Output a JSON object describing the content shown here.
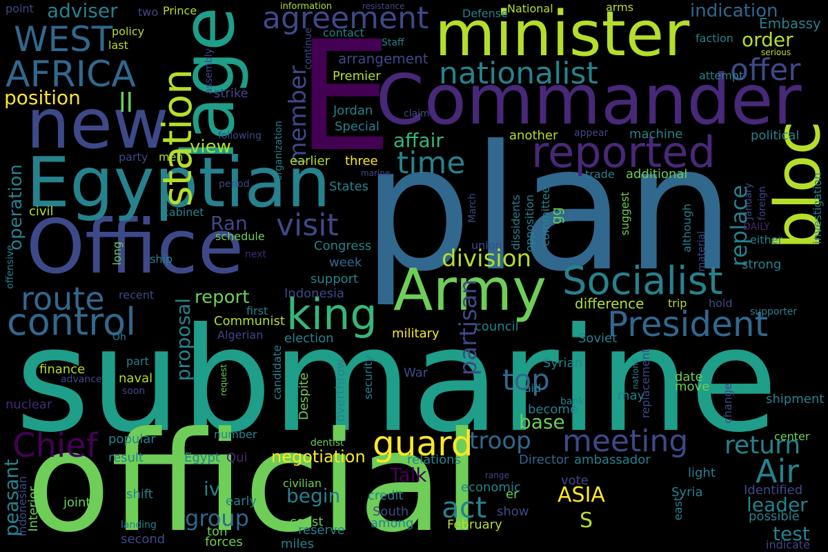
{
  "colors": {
    "background": "#000000",
    "palette": [
      "#440154",
      "#482878",
      "#3e4989",
      "#31688e",
      "#26828e",
      "#1f9e89",
      "#35b779",
      "#6ece58",
      "#b5de2b",
      "#fde725"
    ]
  },
  "words": [
    {
      "text": "submarine",
      "color": "#1f9e89"
    },
    {
      "text": "official",
      "color": "#6ece58"
    },
    {
      "text": "plan",
      "color": "#31688e"
    },
    {
      "text": "Commander",
      "color": "#482878"
    },
    {
      "text": "E",
      "color": "#440154"
    },
    {
      "text": "minister",
      "color": "#b5de2b"
    },
    {
      "text": "Office",
      "color": "#3e4989"
    },
    {
      "text": "Egyptian",
      "color": "#26828e"
    },
    {
      "text": "new",
      "color": "#3e4989"
    },
    {
      "text": "lage",
      "color": "#1f9e89"
    },
    {
      "text": "Army",
      "color": "#6ece58"
    },
    {
      "text": "bloc",
      "color": "#b5de2b"
    },
    {
      "text": "reported",
      "color": "#482878"
    },
    {
      "text": "Socialist",
      "color": "#26828e"
    },
    {
      "text": "President",
      "color": "#31688e"
    },
    {
      "text": "control",
      "color": "#31688e"
    },
    {
      "text": "king",
      "color": "#35b779"
    },
    {
      "text": "station",
      "color": "#b5de2b"
    },
    {
      "text": "AFRICA",
      "color": "#31688e"
    },
    {
      "text": "WEST",
      "color": "#31688e"
    },
    {
      "text": "nationalist",
      "color": "#26828e"
    },
    {
      "text": "route",
      "color": "#31688e"
    },
    {
      "text": "agreement",
      "color": "#3e4989"
    },
    {
      "text": "visit",
      "color": "#3e4989"
    },
    {
      "text": "guard",
      "color": "#fde725"
    },
    {
      "text": "meeting",
      "color": "#3e4989"
    },
    {
      "text": "Chief",
      "color": "#440154"
    },
    {
      "text": "offer",
      "color": "#3e4989"
    },
    {
      "text": "time",
      "color": "#26828e"
    },
    {
      "text": "division",
      "color": "#b5de2b"
    },
    {
      "text": "act",
      "color": "#26828e"
    },
    {
      "text": "top",
      "color": "#31688e"
    },
    {
      "text": "Air",
      "color": "#26828e"
    },
    {
      "text": "return",
      "color": "#26828e"
    },
    {
      "text": "troop",
      "color": "#31688e"
    },
    {
      "text": "member",
      "color": "#3e4989"
    },
    {
      "text": "position",
      "color": "#fde725"
    },
    {
      "text": "indication",
      "color": "#31688e"
    },
    {
      "text": "order",
      "color": "#b5de2b"
    },
    {
      "text": "replace",
      "color": "#26828e"
    },
    {
      "text": "partisan",
      "color": "#3e4989"
    },
    {
      "text": "proposal",
      "color": "#26828e"
    },
    {
      "text": "group",
      "color": "#31688e"
    },
    {
      "text": "base",
      "color": "#6ece58"
    },
    {
      "text": "leader",
      "color": "#26828e"
    },
    {
      "text": "test",
      "color": "#26828e"
    },
    {
      "text": "adviser",
      "color": "#26828e"
    },
    {
      "text": "operation",
      "color": "#26828e"
    },
    {
      "text": "peasant",
      "color": "#26828e"
    },
    {
      "text": "report",
      "color": "#6ece58"
    },
    {
      "text": "ASIA",
      "color": "#fde725"
    },
    {
      "text": "begin",
      "color": "#26828e"
    },
    {
      "text": "iv",
      "color": "#26828e"
    },
    {
      "text": "Talk",
      "color": "#440154"
    },
    {
      "text": "view",
      "color": "#b5de2b"
    },
    {
      "text": "affair",
      "color": "#35b779"
    },
    {
      "text": "negotiation",
      "color": "#fde725"
    },
    {
      "text": "ll",
      "color": "#6ece58"
    },
    {
      "text": "Ran",
      "color": "#3e4989"
    },
    {
      "text": "Embassy",
      "color": "#26828e"
    },
    {
      "text": "S",
      "color": "#b5de2b"
    },
    {
      "text": "arrangement",
      "color": "#3e4989"
    },
    {
      "text": "difference",
      "color": "#b5de2b"
    },
    {
      "text": "week",
      "color": "#31688e"
    },
    {
      "text": "finance",
      "color": "#b5de2b"
    },
    {
      "text": "Premier",
      "color": "#b5de2b"
    },
    {
      "text": "Communist",
      "color": "#b5de2b"
    },
    {
      "text": "military",
      "color": "#fde725"
    },
    {
      "text": "council",
      "color": "#26828e"
    },
    {
      "text": "Indonesia",
      "color": "#3e4989"
    },
    {
      "text": "support",
      "color": "#26828e"
    },
    {
      "text": "Congress",
      "color": "#26828e"
    },
    {
      "text": "election",
      "color": "#26828e"
    },
    {
      "text": "naval",
      "color": "#b5de2b"
    },
    {
      "text": "popular",
      "color": "#26828e"
    },
    {
      "text": "result",
      "color": "#26828e"
    },
    {
      "text": "Egypt",
      "color": "#26828e"
    },
    {
      "text": "Qui",
      "color": "#482878"
    },
    {
      "text": "Director",
      "color": "#31688e"
    },
    {
      "text": "relations",
      "color": "#26828e"
    },
    {
      "text": "ambassador",
      "color": "#26828e"
    },
    {
      "text": "light",
      "color": "#26828e"
    },
    {
      "text": "Syria",
      "color": "#26828e"
    },
    {
      "text": "economic",
      "color": "#26828e"
    },
    {
      "text": "credit",
      "color": "#26828e"
    },
    {
      "text": "er",
      "color": "#6ece58"
    },
    {
      "text": "show",
      "color": "#3e4989"
    },
    {
      "text": "vote",
      "color": "#3e4989"
    },
    {
      "text": "Identified",
      "color": "#3e4989"
    },
    {
      "text": "possible",
      "color": "#26828e"
    },
    {
      "text": "joint",
      "color": "#6ece58"
    },
    {
      "text": "shift",
      "color": "#26828e"
    },
    {
      "text": "early",
      "color": "#26828e"
    },
    {
      "text": "coast",
      "color": "#6ece58"
    },
    {
      "text": "among",
      "color": "#26828e"
    },
    {
      "text": "South",
      "color": "#3e4989"
    },
    {
      "text": "February",
      "color": "#b5de2b"
    },
    {
      "text": "reserve",
      "color": "#26828e"
    },
    {
      "text": "ton",
      "color": "#6ece58"
    },
    {
      "text": "forces",
      "color": "#6ece58"
    },
    {
      "text": "miles",
      "color": "#26828e"
    },
    {
      "text": "second",
      "color": "#3e4989"
    },
    {
      "text": "landing",
      "color": "#26828e"
    },
    {
      "text": "Interior",
      "color": "#6ece58"
    },
    {
      "text": "Indonesian",
      "color": "#3e4989"
    },
    {
      "text": "indicate",
      "color": "#3e4989"
    },
    {
      "text": "number",
      "color": "#26828e"
    },
    {
      "text": "dentist",
      "color": "#6ece58"
    },
    {
      "text": "center",
      "color": "#6ece58"
    },
    {
      "text": "shipment",
      "color": "#26828e"
    },
    {
      "text": "may",
      "color": "#26828e"
    },
    {
      "text": "move",
      "color": "#6ece58"
    },
    {
      "text": "date",
      "color": "#6ece58"
    },
    {
      "text": "bank",
      "color": "#26828e"
    },
    {
      "text": "become",
      "color": "#26828e"
    },
    {
      "text": "aid",
      "color": "#26828e"
    },
    {
      "text": "Syrian",
      "color": "#26828e"
    },
    {
      "text": "Soviet",
      "color": "#26828e"
    },
    {
      "text": "War",
      "color": "#3e4989"
    },
    {
      "text": "part",
      "color": "#26828e"
    },
    {
      "text": "advance",
      "color": "#3e4989"
    },
    {
      "text": "soon",
      "color": "#3e4989"
    },
    {
      "text": "nuclear",
      "color": "#482878"
    },
    {
      "text": "Oh",
      "color": "#26828e"
    },
    {
      "text": "Algerian",
      "color": "#3e4989"
    },
    {
      "text": "first",
      "color": "#26828e"
    },
    {
      "text": "recent",
      "color": "#3e4989"
    },
    {
      "text": "ship",
      "color": "#26828e"
    },
    {
      "text": "long",
      "color": "#6ece58"
    },
    {
      "text": "schedule",
      "color": "#6ece58"
    },
    {
      "text": "cabinet",
      "color": "#26828e"
    },
    {
      "text": "civil",
      "color": "#b5de2b"
    },
    {
      "text": "party",
      "color": "#3e4989"
    },
    {
      "text": "men",
      "color": "#b5de2b"
    },
    {
      "text": "period",
      "color": "#3e4989"
    },
    {
      "text": "next",
      "color": "#482878"
    },
    {
      "text": "earlier",
      "color": "#b5de2b"
    },
    {
      "text": "three",
      "color": "#fde725"
    },
    {
      "text": "States",
      "color": "#26828e"
    },
    {
      "text": "marine",
      "color": "#3e4989"
    },
    {
      "text": "strike",
      "color": "#3e4989"
    },
    {
      "text": "following",
      "color": "#3e4989"
    },
    {
      "text": "Jordan",
      "color": "#26828e"
    },
    {
      "text": "Special",
      "color": "#26828e"
    },
    {
      "text": "claim",
      "color": "#3e4989"
    },
    {
      "text": "appear",
      "color": "#3e4989"
    },
    {
      "text": "machine",
      "color": "#26828e"
    },
    {
      "text": "another",
      "color": "#b5de2b"
    },
    {
      "text": "political",
      "color": "#26828e"
    },
    {
      "text": "trade",
      "color": "#26828e"
    },
    {
      "text": "additional",
      "color": "#6ece58"
    },
    {
      "text": "committee",
      "color": "#26828e"
    },
    {
      "text": "opposition",
      "color": "#26828e"
    },
    {
      "text": "suggest",
      "color": "#6ece58"
    },
    {
      "text": "dissidents",
      "color": "#26828e"
    },
    {
      "text": "January",
      "color": "#3e4989"
    },
    {
      "text": "although",
      "color": "#26828e"
    },
    {
      "text": "material",
      "color": "#3e4989"
    },
    {
      "text": "strong",
      "color": "#26828e"
    },
    {
      "text": "either",
      "color": "#26828e"
    },
    {
      "text": "DAILY",
      "color": "#482878"
    },
    {
      "text": "hold",
      "color": "#3e4989"
    },
    {
      "text": "trip",
      "color": "#b5de2b"
    },
    {
      "text": "supporter",
      "color": "#26828e"
    },
    {
      "text": "foreign",
      "color": "#3e4989"
    },
    {
      "text": "investigation",
      "color": "#26828e"
    },
    {
      "text": "faction",
      "color": "#26828e"
    },
    {
      "text": "attempt",
      "color": "#26828e"
    },
    {
      "text": "serious",
      "color": "#b5de2b"
    },
    {
      "text": "arms",
      "color": "#b5de2b"
    },
    {
      "text": "National",
      "color": "#b5de2b"
    },
    {
      "text": "Defense",
      "color": "#26828e"
    },
    {
      "text": "information",
      "color": "#b5de2b"
    },
    {
      "text": "resistance",
      "color": "#3e4989"
    },
    {
      "text": "contact",
      "color": "#26828e"
    },
    {
      "text": "Staff",
      "color": "#26828e"
    },
    {
      "text": "continue",
      "color": "#3e4989"
    },
    {
      "text": "assembly",
      "color": "#3e4989"
    },
    {
      "text": "organization",
      "color": "#26828e"
    },
    {
      "text": "Prince",
      "color": "#b5de2b"
    },
    {
      "text": "policy",
      "color": "#b5de2b"
    },
    {
      "text": "last",
      "color": "#b5de2b"
    },
    {
      "text": "two",
      "color": "#3e4989"
    },
    {
      "text": "point",
      "color": "#3e4989"
    },
    {
      "text": "offensive",
      "color": "#26828e"
    },
    {
      "text": "gg",
      "color": "#6ece58"
    },
    {
      "text": "union",
      "color": "#3e4989"
    },
    {
      "text": "March",
      "color": "#3e4989"
    },
    {
      "text": "request",
      "color": "#6ece58"
    },
    {
      "text": "security",
      "color": "#26828e"
    },
    {
      "text": "Despite",
      "color": "#6ece58"
    },
    {
      "text": "overthrow",
      "color": "#26828e"
    },
    {
      "text": "candidate",
      "color": "#26828e"
    },
    {
      "text": "civilian",
      "color": "#6ece58"
    },
    {
      "text": "range",
      "color": "#3e4989"
    },
    {
      "text": "nations",
      "color": "#26828e"
    },
    {
      "text": "replacement",
      "color": "#3e4989"
    },
    {
      "text": "change",
      "color": "#3e4989"
    },
    {
      "text": "east",
      "color": "#26828e"
    }
  ]
}
